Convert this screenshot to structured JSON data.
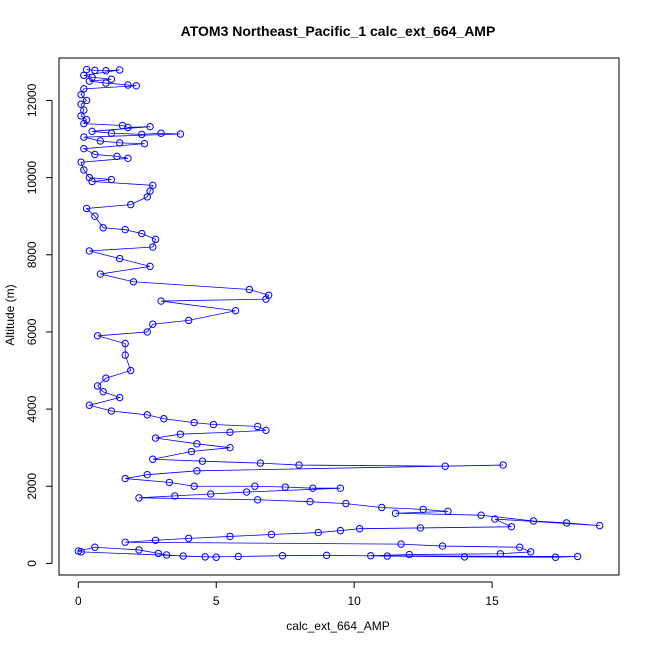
{
  "chart_data": {
    "type": "scatter",
    "title": "ATOM3 Northeast_Pacific_1 calc_ext_664_AMP",
    "xlabel": "calc_ext_664_AMP",
    "ylabel": "Altitude (m)",
    "xlim": [
      -0.7,
      19.6
    ],
    "ylim": [
      -300,
      13100
    ],
    "xticks": [
      0,
      5,
      10,
      15
    ],
    "yticks": [
      0,
      2000,
      4000,
      6000,
      8000,
      10000,
      12000
    ],
    "grid": false,
    "legend": "none",
    "marker": "open-circle",
    "connect_points": true,
    "series": [
      {
        "color": "#0000ff",
        "points": [
          [
            0.3,
            12800
          ],
          [
            0.6,
            12780
          ],
          [
            1.0,
            12770
          ],
          [
            1.5,
            12790
          ],
          [
            0.2,
            12650
          ],
          [
            0.5,
            12600
          ],
          [
            1.2,
            12550
          ],
          [
            0.4,
            12500
          ],
          [
            1.0,
            12450
          ],
          [
            1.8,
            12400
          ],
          [
            2.1,
            12380
          ],
          [
            0.2,
            12300
          ],
          [
            0.1,
            12150
          ],
          [
            0.3,
            12000
          ],
          [
            0.1,
            11900
          ],
          [
            0.2,
            11750
          ],
          [
            0.1,
            11600
          ],
          [
            0.3,
            11500
          ],
          [
            0.2,
            11400
          ],
          [
            1.6,
            11350
          ],
          [
            1.8,
            11300
          ],
          [
            2.6,
            11320
          ],
          [
            0.5,
            11200
          ],
          [
            1.2,
            11150
          ],
          [
            2.3,
            11120
          ],
          [
            3.0,
            11150
          ],
          [
            3.7,
            11130
          ],
          [
            0.2,
            11050
          ],
          [
            0.8,
            10950
          ],
          [
            1.5,
            10900
          ],
          [
            2.4,
            10880
          ],
          [
            0.2,
            10750
          ],
          [
            0.6,
            10600
          ],
          [
            1.4,
            10550
          ],
          [
            1.8,
            10500
          ],
          [
            0.1,
            10400
          ],
          [
            0.2,
            10200
          ],
          [
            0.4,
            10000
          ],
          [
            1.2,
            9950
          ],
          [
            0.5,
            9900
          ],
          [
            2.7,
            9800
          ],
          [
            2.6,
            9650
          ],
          [
            2.5,
            9500
          ],
          [
            1.9,
            9300
          ],
          [
            0.3,
            9200
          ],
          [
            0.6,
            9000
          ],
          [
            0.9,
            8700
          ],
          [
            1.7,
            8650
          ],
          [
            2.3,
            8550
          ],
          [
            2.8,
            8400
          ],
          [
            2.7,
            8200
          ],
          [
            0.4,
            8100
          ],
          [
            1.5,
            7900
          ],
          [
            2.6,
            7700
          ],
          [
            0.8,
            7500
          ],
          [
            2.0,
            7300
          ],
          [
            6.2,
            7100
          ],
          [
            6.9,
            6950
          ],
          [
            6.8,
            6850
          ],
          [
            3.0,
            6800
          ],
          [
            5.7,
            6550
          ],
          [
            4.0,
            6300
          ],
          [
            2.7,
            6200
          ],
          [
            2.5,
            6000
          ],
          [
            0.7,
            5900
          ],
          [
            1.7,
            5700
          ],
          [
            1.7,
            5400
          ],
          [
            1.9,
            5000
          ],
          [
            1.0,
            4800
          ],
          [
            0.7,
            4600
          ],
          [
            0.9,
            4450
          ],
          [
            1.5,
            4300
          ],
          [
            0.4,
            4100
          ],
          [
            1.2,
            3950
          ],
          [
            2.5,
            3850
          ],
          [
            3.1,
            3750
          ],
          [
            4.2,
            3650
          ],
          [
            4.9,
            3600
          ],
          [
            6.5,
            3550
          ],
          [
            6.8,
            3450
          ],
          [
            5.5,
            3400
          ],
          [
            3.7,
            3350
          ],
          [
            2.8,
            3250
          ],
          [
            4.3,
            3100
          ],
          [
            5.5,
            3000
          ],
          [
            4.1,
            2900
          ],
          [
            2.7,
            2700
          ],
          [
            4.5,
            2650
          ],
          [
            6.6,
            2600
          ],
          [
            8.0,
            2550
          ],
          [
            13.3,
            2520
          ],
          [
            15.4,
            2550
          ],
          [
            4.3,
            2400
          ],
          [
            2.5,
            2300
          ],
          [
            1.7,
            2200
          ],
          [
            3.3,
            2100
          ],
          [
            4.2,
            2000
          ],
          [
            6.4,
            2000
          ],
          [
            7.5,
            1980
          ],
          [
            8.5,
            1950
          ],
          [
            9.5,
            1950
          ],
          [
            6.1,
            1850
          ],
          [
            4.8,
            1800
          ],
          [
            3.5,
            1750
          ],
          [
            2.2,
            1700
          ],
          [
            6.5,
            1650
          ],
          [
            8.4,
            1600
          ],
          [
            9.7,
            1550
          ],
          [
            11.0,
            1450
          ],
          [
            12.5,
            1400
          ],
          [
            13.4,
            1350
          ],
          [
            11.5,
            1300
          ],
          [
            14.6,
            1250
          ],
          [
            16.5,
            1100
          ],
          [
            17.7,
            1050
          ],
          [
            18.9,
            980
          ],
          [
            15.1,
            1150
          ],
          [
            15.7,
            950
          ],
          [
            12.4,
            920
          ],
          [
            10.2,
            900
          ],
          [
            9.5,
            850
          ],
          [
            8.7,
            800
          ],
          [
            7.0,
            750
          ],
          [
            5.5,
            700
          ],
          [
            4.0,
            650
          ],
          [
            2.8,
            600
          ],
          [
            1.7,
            550
          ],
          [
            11.7,
            500
          ],
          [
            13.2,
            450
          ],
          [
            16.0,
            420
          ],
          [
            16.4,
            300
          ],
          [
            15.3,
            250
          ],
          [
            12.0,
            230
          ],
          [
            10.6,
            200
          ],
          [
            18.1,
            180
          ],
          [
            17.3,
            160
          ],
          [
            14.0,
            170
          ],
          [
            11.2,
            190
          ],
          [
            9.0,
            210
          ],
          [
            7.4,
            200
          ],
          [
            5.8,
            180
          ],
          [
            4.6,
            170
          ],
          [
            3.8,
            190
          ],
          [
            3.2,
            220
          ],
          [
            2.9,
            260
          ],
          [
            2.2,
            350
          ],
          [
            0.6,
            420
          ],
          [
            0.0,
            320
          ],
          [
            0.1,
            300
          ],
          [
            5.0,
            160
          ]
        ]
      }
    ]
  }
}
